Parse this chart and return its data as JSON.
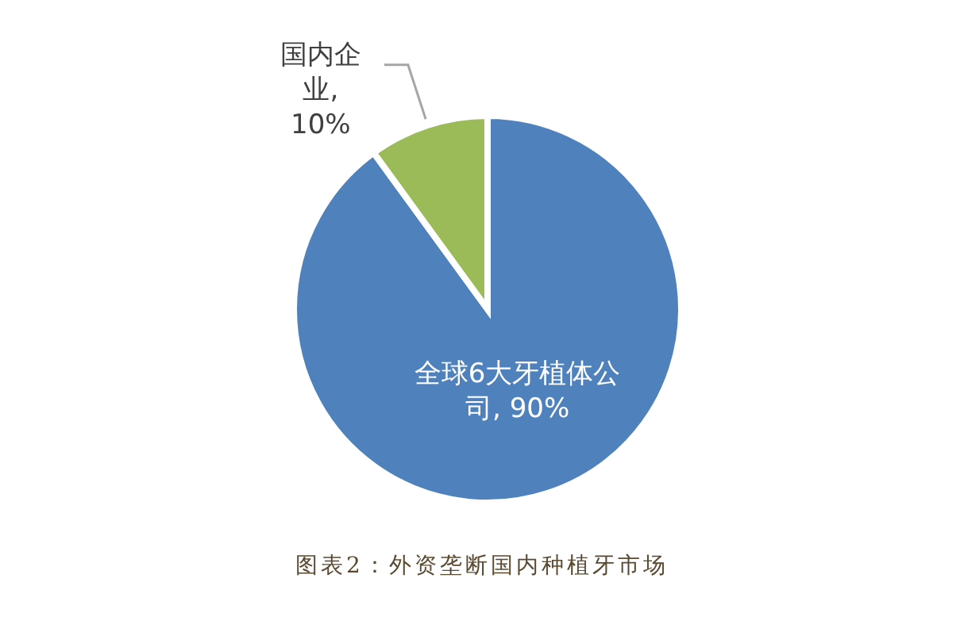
{
  "chart_data": {
    "type": "pie",
    "categories": [
      "全球6大牙植体公司",
      "国内企业"
    ],
    "values": [
      90,
      10
    ],
    "colors": [
      "#4f81bd",
      "#9bbb59"
    ],
    "value_labels": [
      ", 90%",
      ", 10%"
    ],
    "annotations": [
      "图表2：外资垄断国内种植牙市场"
    ]
  }
}
